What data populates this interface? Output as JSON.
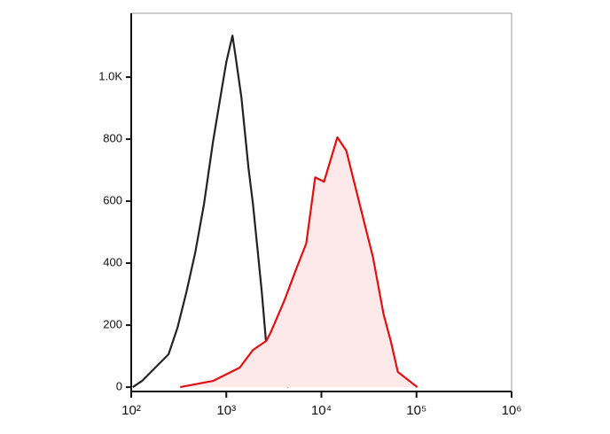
{
  "chart_data": {
    "type": "line",
    "xscale": "log",
    "xlim": [
      100,
      1000000
    ],
    "ylim": [
      -14,
      1206
    ],
    "xticks": [
      {
        "value": 100,
        "label": "10²"
      },
      {
        "value": 1000,
        "label": "10³"
      },
      {
        "value": 10000,
        "label": "10⁴"
      },
      {
        "value": 100000,
        "label": "10⁵"
      },
      {
        "value": 1000000,
        "label": "10⁶"
      }
    ],
    "yticks": [
      0,
      200,
      400,
      600,
      800,
      {
        "value": 1000,
        "label": "1.0K"
      }
    ],
    "series": [
      {
        "color": "#222222",
        "fill": "none",
        "x": [
          104,
          130,
          179,
          247,
          306,
          380,
          471,
          583,
          724,
          898,
          1000,
          1162,
          1239,
          1441,
          1713,
          1907,
          2124,
          2364,
          2634,
          3268,
          4048,
          4508
        ],
        "values": [
          0,
          20,
          63,
          106,
          191,
          306,
          434,
          591,
          791,
          963,
          1049,
          1134,
          1077,
          934,
          706,
          591,
          449,
          306,
          134,
          77,
          20,
          0
        ]
      },
      {
        "color": "#e01010",
        "fill": "#fde8ea",
        "x": [
          327,
          724,
          1380,
          1907,
          2634,
          2933,
          4048,
          5594,
          6934,
          8603,
          10660,
          14730,
          18270,
          25230,
          34840,
          45100,
          53570,
          63660,
          102100
        ],
        "values": [
          0,
          20,
          63,
          120,
          149,
          177,
          277,
          391,
          463,
          677,
          663,
          806,
          763,
          591,
          420,
          234,
          149,
          49,
          0
        ]
      }
    ]
  }
}
